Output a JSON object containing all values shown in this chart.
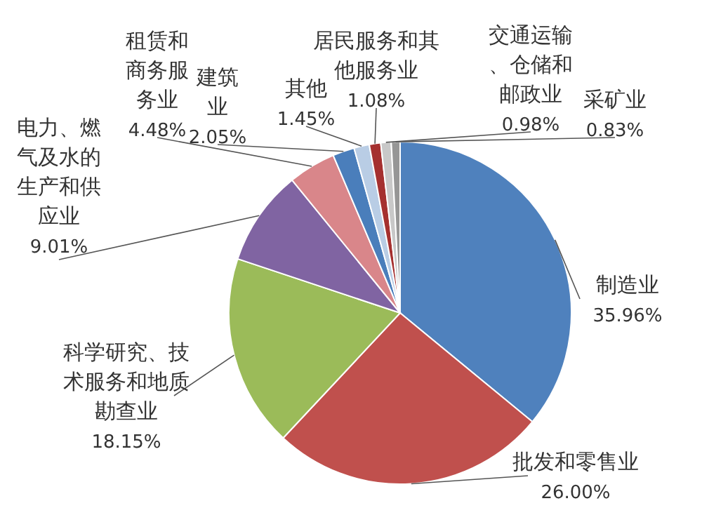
{
  "chart_data": {
    "type": "pie",
    "categories": [
      "制造业",
      "批发和零售业",
      "科学研究、技术服务和地质勘查业",
      "电力、燃气及水的生产和供应业",
      "租赁和商务服务业",
      "建筑业",
      "其他",
      "居民服务和其他服务业",
      "交通运输、仓储和邮政业",
      "采矿业"
    ],
    "values": [
      35.96,
      26.0,
      18.15,
      9.01,
      4.48,
      2.05,
      1.45,
      1.08,
      0.98,
      0.83
    ],
    "value_labels": [
      "35.96%",
      "26.00%",
      "18.15%",
      "9.01%",
      "4.48%",
      "2.05%",
      "1.45%",
      "1.08%",
      "0.98%",
      "0.83%"
    ],
    "colors": [
      "#4f81bd",
      "#c0504d",
      "#9bbb59",
      "#8064a2",
      "#d9868a",
      "#4a7ebb",
      "#b9cde5",
      "#a5302f",
      "#c8c8c8",
      "#969696"
    ]
  }
}
